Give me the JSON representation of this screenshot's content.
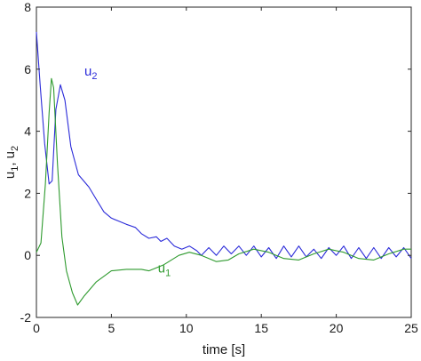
{
  "chart_data": {
    "type": "line",
    "xlabel": "time [s]",
    "ylabel": {
      "base1": "u",
      "sub1": "1",
      "sep": ", ",
      "base2": "u",
      "sub2": "2"
    },
    "xlim": [
      0,
      25
    ],
    "ylim": [
      -2,
      8
    ],
    "xticks": [
      0,
      5,
      10,
      15,
      20,
      25
    ],
    "yticks": [
      -2,
      0,
      2,
      4,
      6,
      8
    ],
    "grid": false,
    "series": [
      {
        "name": "u2",
        "label_base": "u",
        "label_sub": "2",
        "color": "#2b2bd9",
        "points": [
          [
            0,
            7.2
          ],
          [
            0.25,
            5.5
          ],
          [
            0.55,
            3.6
          ],
          [
            0.85,
            2.3
          ],
          [
            1.05,
            2.4
          ],
          [
            1.3,
            4.7
          ],
          [
            1.6,
            5.5
          ],
          [
            1.9,
            5.0
          ],
          [
            2.3,
            3.5
          ],
          [
            2.8,
            2.6
          ],
          [
            3.5,
            2.2
          ],
          [
            4.0,
            1.8
          ],
          [
            4.5,
            1.4
          ],
          [
            5.0,
            1.2
          ],
          [
            5.5,
            1.1
          ],
          [
            6.0,
            1.0
          ],
          [
            6.6,
            0.9
          ],
          [
            7.0,
            0.7
          ],
          [
            7.5,
            0.55
          ],
          [
            8.0,
            0.6
          ],
          [
            8.3,
            0.45
          ],
          [
            8.7,
            0.55
          ],
          [
            9.2,
            0.3
          ],
          [
            9.7,
            0.2
          ],
          [
            10.2,
            0.3
          ],
          [
            10.7,
            0.15
          ],
          [
            11.0,
            0.0
          ],
          [
            11.5,
            0.25
          ],
          [
            12.0,
            0.0
          ],
          [
            12.5,
            0.3
          ],
          [
            13.0,
            0.05
          ],
          [
            13.5,
            0.3
          ],
          [
            14.0,
            0.0
          ],
          [
            14.5,
            0.3
          ],
          [
            15.0,
            -0.05
          ],
          [
            15.5,
            0.25
          ],
          [
            16.0,
            -0.1
          ],
          [
            16.5,
            0.3
          ],
          [
            17.0,
            -0.05
          ],
          [
            17.5,
            0.3
          ],
          [
            18.0,
            -0.05
          ],
          [
            18.5,
            0.2
          ],
          [
            19.0,
            -0.1
          ],
          [
            19.5,
            0.25
          ],
          [
            20.0,
            0.0
          ],
          [
            20.5,
            0.3
          ],
          [
            21.0,
            -0.1
          ],
          [
            21.5,
            0.25
          ],
          [
            22.0,
            -0.1
          ],
          [
            22.5,
            0.25
          ],
          [
            23.0,
            -0.1
          ],
          [
            23.5,
            0.25
          ],
          [
            24.0,
            -0.05
          ],
          [
            24.5,
            0.25
          ],
          [
            25.0,
            -0.1
          ]
        ]
      },
      {
        "name": "u1",
        "label_base": "u",
        "label_sub": "1",
        "color": "#2e9a2e",
        "points": [
          [
            0,
            0.1
          ],
          [
            0.3,
            0.4
          ],
          [
            0.6,
            2.3
          ],
          [
            0.85,
            4.6
          ],
          [
            1.0,
            5.7
          ],
          [
            1.15,
            5.4
          ],
          [
            1.4,
            3.0
          ],
          [
            1.7,
            0.6
          ],
          [
            2.0,
            -0.5
          ],
          [
            2.4,
            -1.2
          ],
          [
            2.75,
            -1.6
          ],
          [
            3.2,
            -1.3
          ],
          [
            4.0,
            -0.85
          ],
          [
            5.0,
            -0.5
          ],
          [
            6.0,
            -0.45
          ],
          [
            7.0,
            -0.45
          ],
          [
            7.5,
            -0.5
          ],
          [
            8.5,
            -0.3
          ],
          [
            9.5,
            0.0
          ],
          [
            10.2,
            0.1
          ],
          [
            11.0,
            0.0
          ],
          [
            12.0,
            -0.2
          ],
          [
            12.8,
            -0.15
          ],
          [
            13.5,
            0.05
          ],
          [
            14.5,
            0.2
          ],
          [
            15.5,
            0.1
          ],
          [
            16.5,
            -0.1
          ],
          [
            17.5,
            -0.15
          ],
          [
            18.5,
            0.05
          ],
          [
            19.5,
            0.2
          ],
          [
            20.5,
            0.1
          ],
          [
            21.5,
            -0.1
          ],
          [
            22.5,
            -0.15
          ],
          [
            23.5,
            0.05
          ],
          [
            24.5,
            0.2
          ],
          [
            25.0,
            0.2
          ]
        ]
      }
    ]
  }
}
